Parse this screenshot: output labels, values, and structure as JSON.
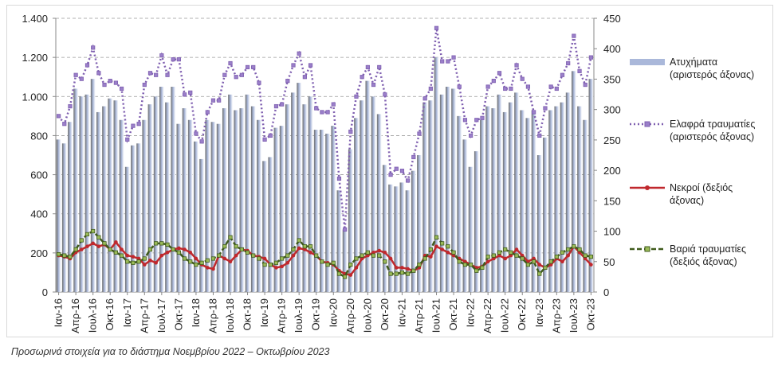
{
  "chart_data": {
    "type": "bar-line",
    "caption": "Προσωρινά στοιχεία για το διάστημα Νοεμβρίου 2022 – Οκτωβρίου 2023",
    "categories": [
      "Ιαν-16",
      null,
      null,
      "Απρ-16",
      null,
      null,
      "Ιουλ-16",
      null,
      null,
      "Οκτ-16",
      null,
      null,
      "Ιαν-17",
      null,
      null,
      "Απρ-17",
      null,
      null,
      "Ιουλ-17",
      null,
      null,
      "Οκτ-17",
      null,
      null,
      "Ιαν-18",
      null,
      null,
      "Απρ-18",
      null,
      null,
      "Ιουλ-18",
      null,
      null,
      "Οκτ-18",
      null,
      null,
      "Ιαν-19",
      null,
      null,
      "Απρ-19",
      null,
      null,
      "Ιουλ-19",
      null,
      null,
      "Οκτ-19",
      null,
      null,
      "Ιαν-20",
      null,
      null,
      "Απρ-20",
      null,
      null,
      "Ιουλ-20",
      null,
      null,
      "Οκτ-20",
      null,
      null,
      "Ιαν-21",
      null,
      null,
      "Απρ-21",
      null,
      null,
      "Ιουλ-21",
      null,
      null,
      "Οκτ-21",
      null,
      null,
      "Ιαν-22",
      null,
      null,
      "Απρ-22",
      null,
      null,
      "Ιουλ-22",
      null,
      null,
      "Οκτ-22",
      null,
      null,
      "Ιαν-23",
      null,
      null,
      "Απρ-23",
      null,
      null,
      "Ιουλ-23",
      null,
      null,
      "Οκτ-23"
    ],
    "ylim": [
      0,
      1400
    ],
    "yticks": [
      0,
      200,
      400,
      600,
      800,
      {
        "value": 1000,
        "label": "1.000"
      },
      {
        "value": 1200,
        "label": "1.200"
      },
      {
        "value": 1400,
        "label": "1.400"
      }
    ],
    "y2lim": [
      0,
      450
    ],
    "y2ticks": [
      0,
      50,
      100,
      150,
      200,
      250,
      300,
      350,
      400,
      450
    ],
    "grid": true,
    "series": [
      {
        "name": "Ατυχήματα (αριστερός άξονας)",
        "kind": "bar",
        "color": "#aab8da",
        "values": [
          780,
          760,
          870,
          1040,
          1000,
          1010,
          1090,
          920,
          950,
          990,
          980,
          880,
          640,
          750,
          760,
          880,
          960,
          1000,
          1050,
          970,
          1050,
          860,
          940,
          880,
          770,
          680,
          880,
          870,
          860,
          940,
          1010,
          930,
          940,
          1010,
          950,
          880,
          670,
          690,
          840,
          850,
          960,
          1020,
          1070,
          960,
          1000,
          830,
          830,
          810,
          850,
          520,
          320,
          730,
          890,
          980,
          1080,
          1000,
          910,
          650,
          550,
          540,
          560,
          520,
          620,
          700,
          970,
          980,
          1200,
          1010,
          1050,
          1040,
          900,
          780,
          640,
          720,
          880,
          950,
          940,
          1010,
          920,
          970,
          1020,
          930,
          890,
          930,
          700,
          790,
          930,
          950,
          970,
          1020,
          1130,
          950,
          880,
          1090
        ]
      },
      {
        "name": "Ελαφρά τραυματίες (αριστερός άξονας)",
        "kind": "dotted-line",
        "color": "#7f5fb0",
        "values": [
          900,
          860,
          950,
          1110,
          1090,
          1160,
          1250,
          1120,
          1060,
          1080,
          1070,
          1040,
          780,
          850,
          860,
          1060,
          1120,
          1110,
          1210,
          1110,
          1190,
          1190,
          1010,
          1020,
          810,
          770,
          920,
          980,
          980,
          1110,
          1170,
          1100,
          1110,
          1150,
          1150,
          1070,
          780,
          800,
          950,
          960,
          1080,
          1160,
          1220,
          1100,
          1160,
          940,
          920,
          920,
          960,
          580,
          320,
          820,
          1000,
          1100,
          1150,
          1060,
          1150,
          1010,
          600,
          630,
          620,
          570,
          690,
          810,
          990,
          1040,
          1350,
          1180,
          1180,
          1200,
          1050,
          880,
          800,
          880,
          890,
          1050,
          1080,
          1120,
          1040,
          1040,
          1160,
          1090,
          1050,
          920,
          800,
          940,
          1050,
          1040,
          1110,
          1170,
          1310,
          1130,
          1060,
          1200
        ]
      },
      {
        "name": "Νεκροί (δεξιός άξονας)",
        "kind": "line",
        "axis": "y2",
        "color": "#c0282d",
        "values": [
          60,
          58,
          55,
          65,
          70,
          75,
          80,
          75,
          78,
          70,
          82,
          70,
          60,
          58,
          55,
          45,
          52,
          48,
          60,
          65,
          70,
          72,
          70,
          65,
          55,
          45,
          40,
          38,
          60,
          55,
          50,
          60,
          70,
          68,
          60,
          58,
          55,
          45,
          40,
          42,
          48,
          60,
          72,
          70,
          65,
          60,
          50,
          48,
          45,
          35,
          30,
          28,
          40,
          55,
          60,
          65,
          68,
          65,
          55,
          40,
          40,
          38,
          35,
          40,
          60,
          58,
          75,
          70,
          65,
          60,
          55,
          50,
          45,
          40,
          42,
          50,
          55,
          60,
          55,
          60,
          70,
          60,
          50,
          55,
          45,
          40,
          45,
          55,
          50,
          60,
          75,
          65,
          55,
          45
        ]
      },
      {
        "name": "Βαριά τραυματίες (δεξιός άξονας)",
        "kind": "dashed-line",
        "axis": "y2",
        "color": "#3f5a1c",
        "values": [
          62,
          60,
          58,
          70,
          85,
          95,
          100,
          90,
          80,
          70,
          65,
          60,
          50,
          48,
          50,
          55,
          70,
          80,
          80,
          78,
          70,
          65,
          55,
          50,
          45,
          48,
          52,
          55,
          60,
          75,
          90,
          75,
          70,
          65,
          60,
          55,
          45,
          45,
          48,
          55,
          60,
          70,
          85,
          75,
          75,
          60,
          50,
          45,
          48,
          30,
          25,
          45,
          55,
          60,
          65,
          60,
          60,
          50,
          30,
          30,
          32,
          30,
          35,
          45,
          55,
          70,
          90,
          80,
          75,
          65,
          50,
          45,
          45,
          35,
          40,
          58,
          60,
          65,
          70,
          65,
          60,
          55,
          45,
          50,
          30,
          40,
          50,
          58,
          65,
          70,
          75,
          70,
          60,
          58
        ]
      }
    ]
  }
}
